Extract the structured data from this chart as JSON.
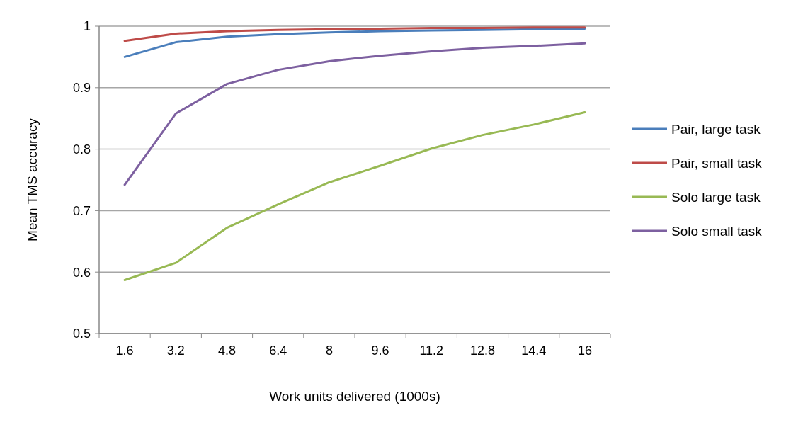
{
  "chart_data": {
    "type": "line",
    "xlabel": "Work units delivered (1000s)",
    "ylabel": "Mean TMS accuracy",
    "categories": [
      "1.6",
      "3.2",
      "4.8",
      "6.4",
      "8",
      "9.6",
      "11.2",
      "12.8",
      "14.4",
      "16"
    ],
    "ylim": [
      0.5,
      1
    ],
    "yticks": [
      {
        "value": 0.5,
        "label": "0.5"
      },
      {
        "value": 0.6,
        "label": "0.6"
      },
      {
        "value": 0.7,
        "label": "0.7"
      },
      {
        "value": 0.8,
        "label": "0.8"
      },
      {
        "value": 0.9,
        "label": "0.9"
      },
      {
        "value": 1,
        "label": "1"
      }
    ],
    "grid": "y",
    "legend": "right",
    "marker": "none",
    "line_style": "solid",
    "series": [
      {
        "name": "Pair, large task",
        "color": "#4a7ebb",
        "values": [
          0.95,
          0.974,
          0.983,
          0.987,
          0.99,
          0.992,
          0.993,
          0.994,
          0.995,
          0.996
        ]
      },
      {
        "name": "Pair, small task",
        "color": "#be4b48",
        "values": [
          0.976,
          0.988,
          0.992,
          0.994,
          0.995,
          0.996,
          0.997,
          0.997,
          0.998,
          0.998
        ]
      },
      {
        "name": "Solo large task",
        "color": "#98b954",
        "values": [
          0.587,
          0.615,
          0.672,
          0.71,
          0.746,
          0.773,
          0.801,
          0.823,
          0.84,
          0.86
        ]
      },
      {
        "name": "Solo small task",
        "color": "#7d60a0",
        "values": [
          0.742,
          0.858,
          0.906,
          0.929,
          0.943,
          0.952,
          0.959,
          0.965,
          0.968,
          0.972
        ]
      }
    ]
  }
}
